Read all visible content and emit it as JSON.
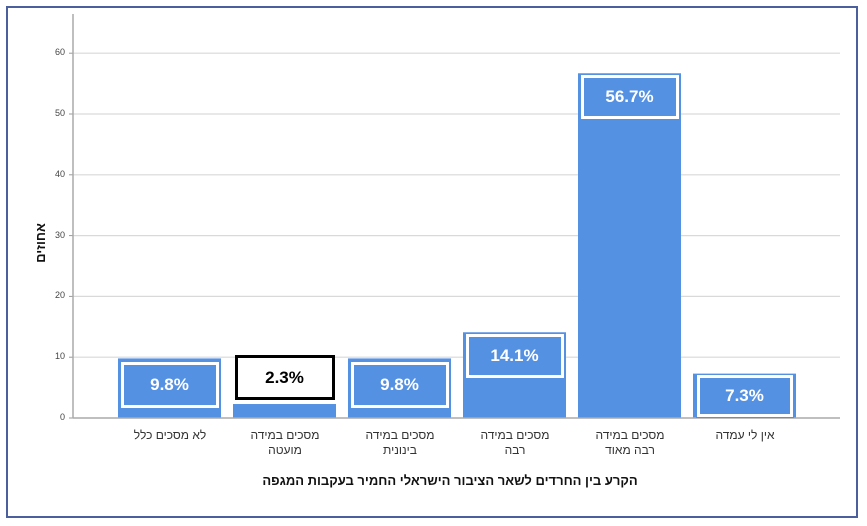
{
  "chart_data": {
    "type": "bar",
    "title": "",
    "xlabel": "הקרע בין החרדים לשאר הציבור הישראלי החמיר בעקבות המגפה",
    "ylabel": "אחוזים",
    "ylim": [
      0,
      65
    ],
    "yticks": [
      0,
      10,
      20,
      30,
      40,
      50,
      60
    ],
    "grid": true,
    "legend": null,
    "categories": [
      [
        "לא מסכים כלל"
      ],
      [
        "מסכים במידה",
        "מועטה"
      ],
      [
        "מסכים במידה",
        "בינונית"
      ],
      [
        "מסכים במידה",
        "רבה"
      ],
      [
        "מסכים במידה",
        "רבה מאוד"
      ],
      [
        "אין לי עמדה"
      ]
    ],
    "values": [
      9.8,
      2.3,
      9.8,
      14.1,
      56.7,
      7.3
    ],
    "data_labels": [
      "9.8%",
      "2.3%",
      "9.8%",
      "14.1%",
      "56.7%",
      "7.3%"
    ],
    "bar_color": "#5591e3"
  },
  "axis": {
    "y_title": "אחוזים",
    "x_title": "הקרע בין החרדים לשאר הציבור הישראלי החמיר בעקבות המגפה"
  }
}
